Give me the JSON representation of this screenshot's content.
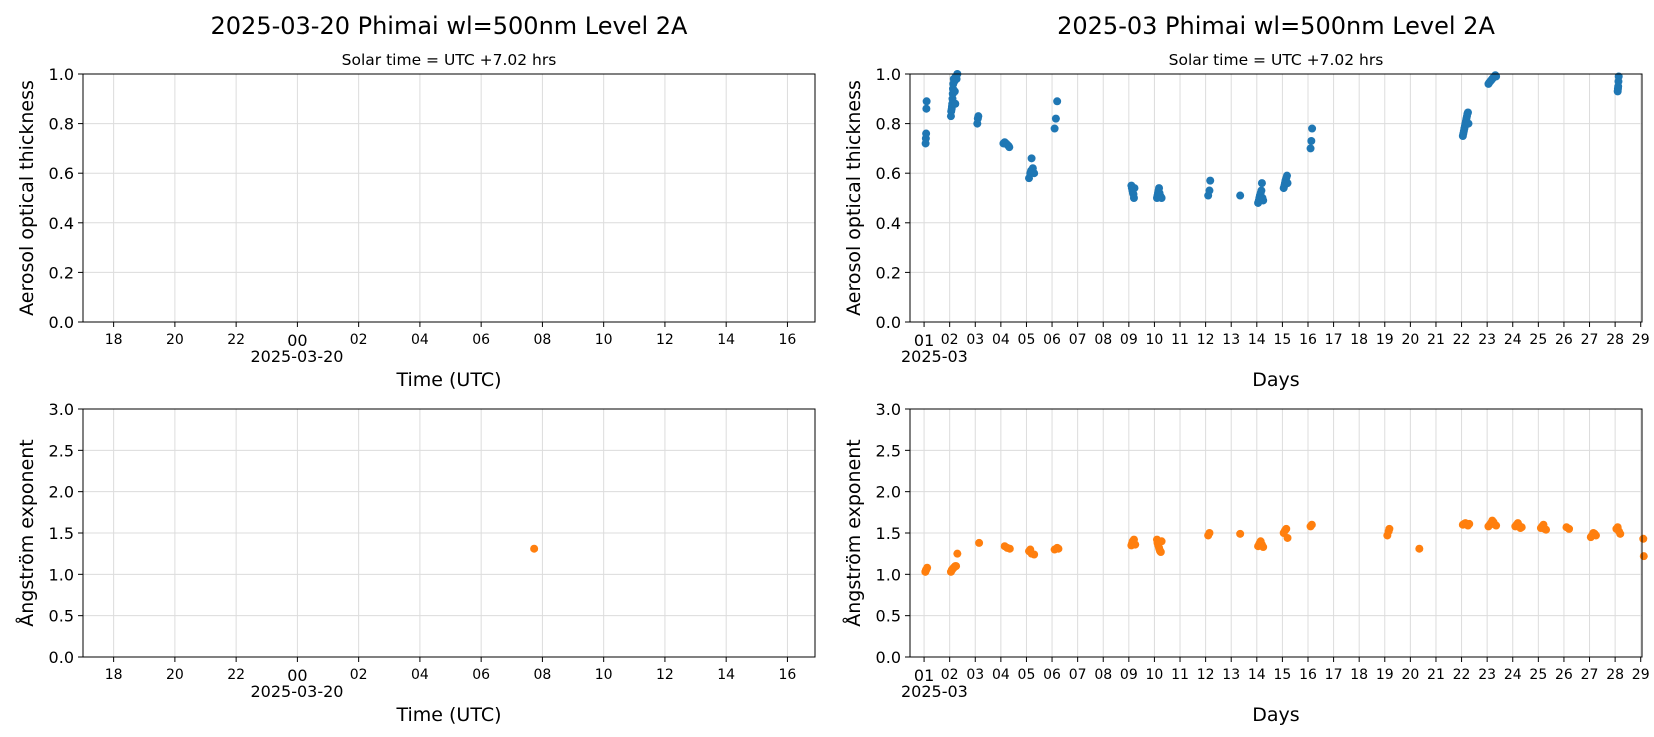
{
  "colors": {
    "aot": "#1f77b4",
    "angstrom": "#ff7f0e"
  },
  "chart_data": [
    {
      "id": "daily_aot",
      "type": "scatter",
      "title": "2025-03-20  Phimai  wl=500nm  Level 2A",
      "subtitle": "Solar time = UTC +7.02 hrs",
      "xlabel": "Time (UTC)",
      "ylabel": "Aerosol optical thickness",
      "ylim": [
        0,
        1
      ],
      "yticks": [
        "0.0",
        "0.2",
        "0.4",
        "0.6",
        "0.8",
        "1.0"
      ],
      "xlim_hours": [
        -7.0,
        16.9
      ],
      "xtick_hours": [
        -6,
        -4,
        -2,
        0,
        2,
        4,
        6,
        8,
        10,
        12,
        14,
        16
      ],
      "xtick_labels": [
        "18",
        "20",
        "22",
        "00",
        "02",
        "04",
        "06",
        "08",
        "10",
        "12",
        "14",
        "16"
      ],
      "date_label": "2025-03-20",
      "grid": true,
      "series": [
        {
          "points": []
        }
      ]
    },
    {
      "id": "monthly_aot",
      "type": "scatter",
      "title": "2025-03  Phimai  wl=500nm  Level 2A",
      "subtitle": "Solar time = UTC +7.02 hrs",
      "xlabel": "Days",
      "ylabel": "Aerosol optical thickness",
      "ylim": [
        0,
        1
      ],
      "yticks": [
        "0.0",
        "0.2",
        "0.4",
        "0.6",
        "0.8",
        "1.0"
      ],
      "xlim_days": [
        0.45,
        29.05
      ],
      "xtick_days": [
        1,
        2,
        3,
        4,
        5,
        6,
        7,
        8,
        9,
        10,
        11,
        12,
        13,
        14,
        15,
        16,
        17,
        18,
        19,
        20,
        21,
        22,
        23,
        24,
        25,
        26,
        27,
        28,
        29
      ],
      "xtick_labels": [
        "01",
        "02",
        "03",
        "04",
        "05",
        "06",
        "07",
        "08",
        "09",
        "10",
        "11",
        "12",
        "13",
        "14",
        "15",
        "16",
        "17",
        "18",
        "19",
        "20",
        "21",
        "22",
        "23",
        "24",
        "25",
        "26",
        "27",
        "28",
        "29"
      ],
      "date_label": "2025-03",
      "grid": true,
      "series": [
        {
          "points": [
            [
              1.06,
              0.72
            ],
            [
              1.07,
              0.74
            ],
            [
              1.08,
              0.76
            ],
            [
              1.09,
              0.86
            ],
            [
              1.1,
              0.89
            ],
            [
              2.05,
              0.83
            ],
            [
              2.06,
              0.85
            ],
            [
              2.08,
              0.86
            ],
            [
              2.09,
              0.87
            ],
            [
              2.1,
              0.88
            ],
            [
              2.11,
              0.9
            ],
            [
              2.12,
              0.92
            ],
            [
              2.13,
              0.94
            ],
            [
              2.14,
              0.96
            ],
            [
              2.16,
              0.98
            ],
            [
              2.18,
              0.97
            ],
            [
              2.2,
              0.93
            ],
            [
              2.22,
              0.88
            ],
            [
              2.24,
              0.99
            ],
            [
              2.27,
              0.98
            ],
            [
              2.3,
              1.0
            ],
            [
              3.08,
              0.8
            ],
            [
              3.1,
              0.82
            ],
            [
              3.12,
              0.83
            ],
            [
              4.1,
              0.72
            ],
            [
              4.15,
              0.725
            ],
            [
              4.2,
              0.72
            ],
            [
              4.25,
              0.715
            ],
            [
              4.3,
              0.71
            ],
            [
              4.33,
              0.705
            ],
            [
              5.1,
              0.58
            ],
            [
              5.15,
              0.6
            ],
            [
              5.18,
              0.61
            ],
            [
              5.2,
              0.66
            ],
            [
              5.25,
              0.62
            ],
            [
              5.3,
              0.6
            ],
            [
              6.1,
              0.78
            ],
            [
              6.15,
              0.82
            ],
            [
              6.2,
              0.89
            ],
            [
              9.1,
              0.55
            ],
            [
              9.12,
              0.54
            ],
            [
              9.14,
              0.53
            ],
            [
              9.16,
              0.52
            ],
            [
              9.18,
              0.515
            ],
            [
              9.2,
              0.5
            ],
            [
              9.22,
              0.54
            ],
            [
              10.1,
              0.5
            ],
            [
              10.12,
              0.51
            ],
            [
              10.14,
              0.52
            ],
            [
              10.16,
              0.53
            ],
            [
              10.18,
              0.54
            ],
            [
              10.2,
              0.52
            ],
            [
              10.22,
              0.51
            ],
            [
              10.25,
              0.505
            ],
            [
              10.28,
              0.5
            ],
            [
              12.1,
              0.51
            ],
            [
              12.15,
              0.53
            ],
            [
              12.18,
              0.57
            ],
            [
              13.35,
              0.51
            ],
            [
              14.05,
              0.48
            ],
            [
              14.08,
              0.49
            ],
            [
              14.1,
              0.5
            ],
            [
              14.12,
              0.51
            ],
            [
              14.15,
              0.52
            ],
            [
              14.18,
              0.53
            ],
            [
              14.2,
              0.56
            ],
            [
              14.22,
              0.5
            ],
            [
              14.25,
              0.49
            ],
            [
              15.05,
              0.54
            ],
            [
              15.08,
              0.55
            ],
            [
              15.1,
              0.56
            ],
            [
              15.12,
              0.57
            ],
            [
              15.15,
              0.58
            ],
            [
              15.18,
              0.59
            ],
            [
              15.2,
              0.56
            ],
            [
              16.1,
              0.7
            ],
            [
              16.13,
              0.73
            ],
            [
              16.16,
              0.78
            ],
            [
              22.05,
              0.75
            ],
            [
              22.07,
              0.76
            ],
            [
              22.09,
              0.77
            ],
            [
              22.11,
              0.78
            ],
            [
              22.13,
              0.79
            ],
            [
              22.15,
              0.8
            ],
            [
              22.17,
              0.81
            ],
            [
              22.19,
              0.82
            ],
            [
              22.21,
              0.83
            ],
            [
              22.23,
              0.84
            ],
            [
              22.25,
              0.845
            ],
            [
              22.27,
              0.8
            ],
            [
              23.05,
              0.96
            ],
            [
              23.08,
              0.965
            ],
            [
              23.12,
              0.97
            ],
            [
              23.16,
              0.975
            ],
            [
              23.2,
              0.98
            ],
            [
              23.24,
              0.985
            ],
            [
              23.28,
              0.99
            ],
            [
              23.32,
              0.995
            ],
            [
              23.35,
              0.99
            ],
            [
              28.1,
              0.93
            ],
            [
              28.11,
              0.94
            ],
            [
              28.12,
              0.95
            ],
            [
              28.13,
              0.97
            ],
            [
              28.14,
              0.99
            ]
          ]
        }
      ]
    },
    {
      "id": "daily_angstrom",
      "type": "scatter",
      "title": "",
      "xlabel": "Time (UTC)",
      "ylabel": "Ångström exponent",
      "ylim": [
        0,
        3
      ],
      "yticks": [
        "0.0",
        "0.5",
        "1.0",
        "1.5",
        "2.0",
        "2.5",
        "3.0"
      ],
      "xlim_hours": [
        -7.0,
        16.9
      ],
      "xtick_hours": [
        -6,
        -4,
        -2,
        0,
        2,
        4,
        6,
        8,
        10,
        12,
        14,
        16
      ],
      "xtick_labels": [
        "18",
        "20",
        "22",
        "00",
        "02",
        "04",
        "06",
        "08",
        "10",
        "12",
        "14",
        "16"
      ],
      "date_label": "2025-03-20",
      "grid": true,
      "series": [
        {
          "points": [
            [
              7.73,
              1.31
            ]
          ]
        }
      ]
    },
    {
      "id": "monthly_angstrom",
      "type": "scatter",
      "title": "",
      "xlabel": "Days",
      "ylabel": "Ångström exponent",
      "ylim": [
        0,
        3
      ],
      "yticks": [
        "0.0",
        "0.5",
        "1.0",
        "1.5",
        "2.0",
        "2.5",
        "3.0"
      ],
      "xlim_days": [
        0.45,
        29.05
      ],
      "xtick_days": [
        1,
        2,
        3,
        4,
        5,
        6,
        7,
        8,
        9,
        10,
        11,
        12,
        13,
        14,
        15,
        16,
        17,
        18,
        19,
        20,
        21,
        22,
        23,
        24,
        25,
        26,
        27,
        28,
        29
      ],
      "xtick_labels": [
        "01",
        "02",
        "03",
        "04",
        "05",
        "06",
        "07",
        "08",
        "09",
        "10",
        "11",
        "12",
        "13",
        "14",
        "15",
        "16",
        "17",
        "18",
        "19",
        "20",
        "21",
        "22",
        "23",
        "24",
        "25",
        "26",
        "27",
        "28",
        "29"
      ],
      "date_label": "2025-03",
      "grid": true,
      "series": [
        {
          "points": [
            [
              1.05,
              1.03
            ],
            [
              1.07,
              1.05
            ],
            [
              1.09,
              1.06
            ],
            [
              1.12,
              1.08
            ],
            [
              2.05,
              1.03
            ],
            [
              2.08,
              1.05
            ],
            [
              2.1,
              1.06
            ],
            [
              2.13,
              1.07
            ],
            [
              2.16,
              1.08
            ],
            [
              2.19,
              1.09
            ],
            [
              2.22,
              1.1
            ],
            [
              2.25,
              1.1
            ],
            [
              2.3,
              1.25
            ],
            [
              3.15,
              1.38
            ],
            [
              4.15,
              1.34
            ],
            [
              4.25,
              1.32
            ],
            [
              4.35,
              1.31
            ],
            [
              5.1,
              1.28
            ],
            [
              5.15,
              1.3
            ],
            [
              5.2,
              1.25
            ],
            [
              5.3,
              1.24
            ],
            [
              6.1,
              1.3
            ],
            [
              6.2,
              1.32
            ],
            [
              6.25,
              1.31
            ],
            [
              9.1,
              1.35
            ],
            [
              9.12,
              1.37
            ],
            [
              9.15,
              1.4
            ],
            [
              9.2,
              1.42
            ],
            [
              9.25,
              1.36
            ],
            [
              10.1,
              1.42
            ],
            [
              10.12,
              1.38
            ],
            [
              10.15,
              1.35
            ],
            [
              10.18,
              1.32
            ],
            [
              10.2,
              1.3
            ],
            [
              10.22,
              1.28
            ],
            [
              10.25,
              1.27
            ],
            [
              10.28,
              1.4
            ],
            [
              12.1,
              1.47
            ],
            [
              12.15,
              1.5
            ],
            [
              13.35,
              1.49
            ],
            [
              14.05,
              1.34
            ],
            [
              14.1,
              1.37
            ],
            [
              14.15,
              1.4
            ],
            [
              14.2,
              1.36
            ],
            [
              14.25,
              1.33
            ],
            [
              15.05,
              1.5
            ],
            [
              15.1,
              1.53
            ],
            [
              15.15,
              1.55
            ],
            [
              15.2,
              1.44
            ],
            [
              16.1,
              1.58
            ],
            [
              16.15,
              1.6
            ],
            [
              19.1,
              1.47
            ],
            [
              19.15,
              1.52
            ],
            [
              19.18,
              1.55
            ],
            [
              20.35,
              1.31
            ],
            [
              22.05,
              1.6
            ],
            [
              22.1,
              1.61
            ],
            [
              22.15,
              1.62
            ],
            [
              22.2,
              1.6
            ],
            [
              22.25,
              1.59
            ],
            [
              22.3,
              1.61
            ],
            [
              23.05,
              1.58
            ],
            [
              23.1,
              1.6
            ],
            [
              23.15,
              1.62
            ],
            [
              23.2,
              1.65
            ],
            [
              23.25,
              1.63
            ],
            [
              23.3,
              1.6
            ],
            [
              23.35,
              1.59
            ],
            [
              24.1,
              1.58
            ],
            [
              24.15,
              1.6
            ],
            [
              24.2,
              1.62
            ],
            [
              24.25,
              1.59
            ],
            [
              24.3,
              1.56
            ],
            [
              24.35,
              1.57
            ],
            [
              25.1,
              1.56
            ],
            [
              25.15,
              1.58
            ],
            [
              25.2,
              1.6
            ],
            [
              25.25,
              1.55
            ],
            [
              25.3,
              1.54
            ],
            [
              26.1,
              1.57
            ],
            [
              26.2,
              1.55
            ],
            [
              27.05,
              1.45
            ],
            [
              27.1,
              1.47
            ],
            [
              27.15,
              1.5
            ],
            [
              27.2,
              1.49
            ],
            [
              27.25,
              1.47
            ],
            [
              28.05,
              1.55
            ],
            [
              28.1,
              1.57
            ],
            [
              28.15,
              1.52
            ],
            [
              28.2,
              1.49
            ],
            [
              29.1,
              1.43
            ],
            [
              29.12,
              1.22
            ]
          ]
        }
      ]
    }
  ]
}
